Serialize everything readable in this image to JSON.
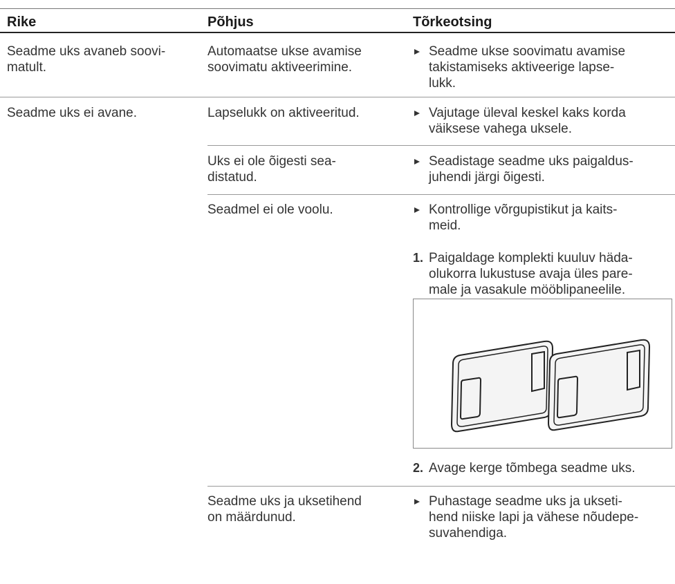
{
  "table": {
    "header": [
      "Rike",
      "Põhjus",
      "Tõrkeotsing"
    ],
    "rows": [
      {
        "fault": [
          "Seadme uks avaneb soovi-",
          "matult."
        ],
        "causes": [
          {
            "cause": [
              "Automaatse ukse avamise",
              "soovimatu aktiveerimine."
            ],
            "remedies": [
              {
                "lines": [
                  "Seadme ukse soovimatu avamise",
                  "takistamiseks aktiveerige lapse-",
                  "lukk."
                ]
              }
            ]
          }
        ]
      },
      {
        "fault": [
          "Seadme uks ei avane."
        ],
        "causes": [
          {
            "cause": [
              "Lapselukk on aktiveeritud."
            ],
            "remedies": [
              {
                "lines": [
                  "Vajutage üleval keskel kaks korda",
                  "väiksese vahega uksele."
                ]
              }
            ]
          },
          {
            "cause": [
              "Uks ei ole õigesti sea-",
              "distatud."
            ],
            "remedies": [
              {
                "lines": [
                  "Seadistage seadme uks paigaldus-",
                  "juhendi järgi õigesti."
                ]
              }
            ]
          },
          {
            "cause": [
              "Seadmel ei ole voolu."
            ],
            "remedies": [
              {
                "lines": [
                  "Kontrollige võrgupistikut ja kaits-",
                  "meid."
                ]
              },
              {
                "number": "1.",
                "lines": [
                  "Paigaldage komplekti kuuluv häda-",
                  "olukorra lukustuse avaja üles pare-",
                  "male ja vasakule mööblipaneelile."
                ]
              },
              {
                "number": "2.",
                "lines": [
                  "Avage kerge tõmbega seadme uks."
                ]
              }
            ]
          },
          {
            "cause": [
              "Seadme uks ja uksetihend",
              "on määrdunud."
            ],
            "remedies": [
              {
                "lines": [
                  "Puhastage seadme uks ja ukseti-",
                  "hend niiske lapi ja vähese nõudepe-",
                  "suvahendiga."
                ]
              }
            ]
          }
        ]
      }
    ]
  }
}
